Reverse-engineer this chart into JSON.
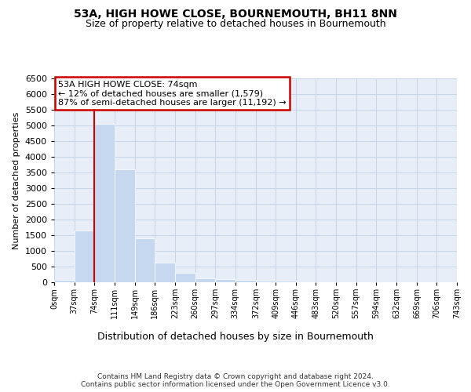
{
  "title": "53A, HIGH HOWE CLOSE, BOURNEMOUTH, BH11 8NN",
  "subtitle": "Size of property relative to detached houses in Bournemouth",
  "xlabel": "Distribution of detached houses by size in Bournemouth",
  "ylabel": "Number of detached properties",
  "footer_line1": "Contains HM Land Registry data © Crown copyright and database right 2024.",
  "footer_line2": "Contains public sector information licensed under the Open Government Licence v3.0.",
  "annotation_line1": "53A HIGH HOWE CLOSE: 74sqm",
  "annotation_line2": "← 12% of detached houses are smaller (1,579)",
  "annotation_line3": "87% of semi-detached houses are larger (11,192) →",
  "bar_color": "#c5d8f0",
  "vline_color": "#cc0000",
  "annotation_edge_color": "#cc0000",
  "grid_color": "#c8d4e8",
  "bg_color": "#e8eef8",
  "ylim": [
    0,
    6500
  ],
  "yticks": [
    0,
    500,
    1000,
    1500,
    2000,
    2500,
    3000,
    3500,
    4000,
    4500,
    5000,
    5500,
    6000,
    6500
  ],
  "bin_edges": [
    0,
    37,
    74,
    111,
    149,
    186,
    223,
    260,
    297,
    334,
    372,
    409,
    446,
    483,
    520,
    557,
    594,
    632,
    669,
    706,
    743
  ],
  "bar_heights": [
    70,
    1650,
    5060,
    3590,
    1400,
    620,
    290,
    130,
    95,
    80,
    55,
    50,
    10,
    5,
    5,
    5,
    5,
    5,
    5,
    5
  ],
  "vline_x": 74,
  "title_fontsize": 10,
  "subtitle_fontsize": 9,
  "ylabel_fontsize": 8,
  "xlabel_fontsize": 9,
  "ytick_fontsize": 8,
  "xtick_fontsize": 7,
  "footer_fontsize": 6.5,
  "annotation_fontsize": 8
}
